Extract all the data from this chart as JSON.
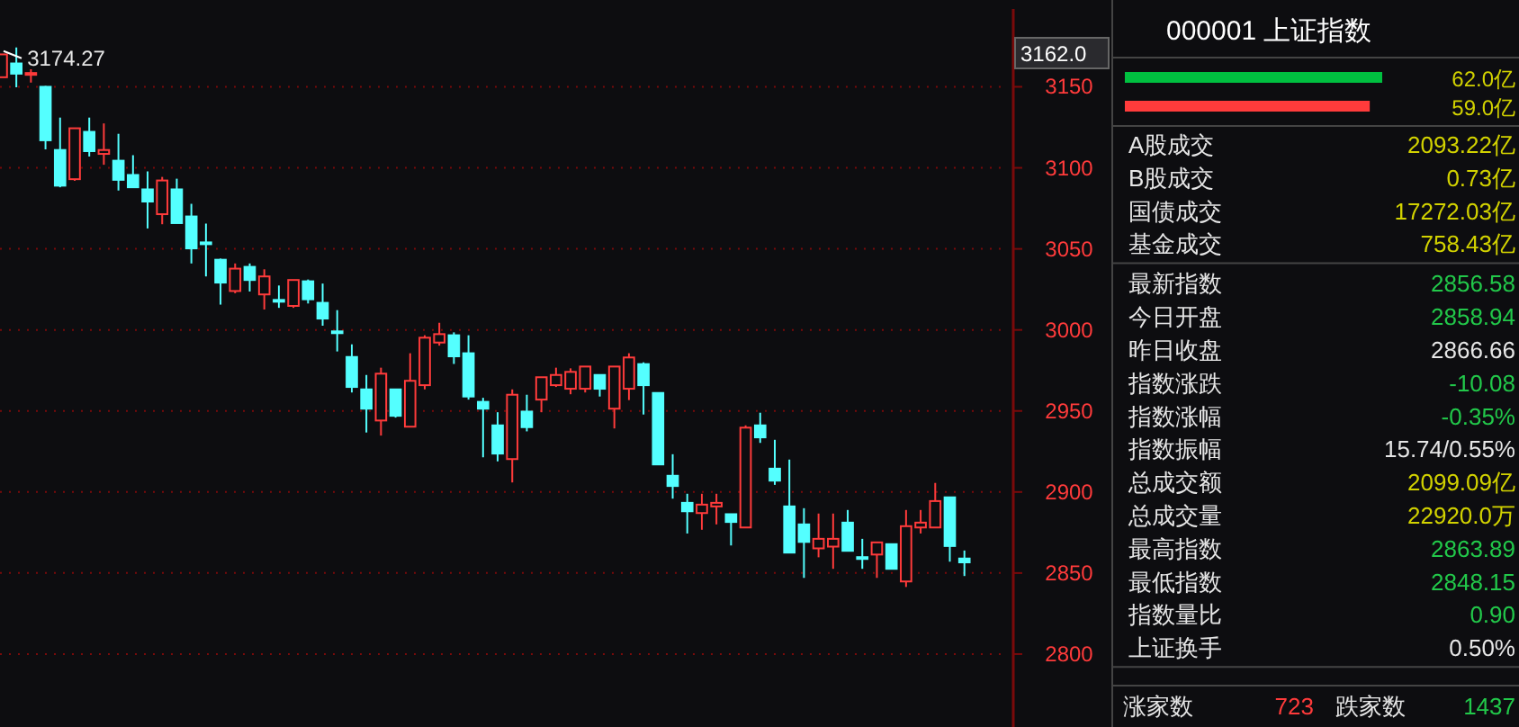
{
  "chart_data": [
    {
      "type": "candlestick",
      "categories": [
        null,
        null,
        null,
        null,
        null,
        null,
        null,
        null,
        null,
        null,
        null,
        null,
        null,
        null,
        null,
        null,
        null,
        null,
        null,
        null,
        null,
        null,
        null,
        null,
        null,
        null,
        null,
        null,
        null,
        null,
        null,
        null,
        null,
        null,
        null,
        null,
        null,
        null,
        null,
        null,
        null,
        null,
        null,
        null,
        null,
        null,
        null,
        null,
        null,
        null,
        null,
        null,
        null,
        null,
        null,
        null,
        null,
        null,
        null,
        null,
        null,
        null,
        null,
        null,
        null,
        null,
        null
      ],
      "ohlc": [
        [
          3155.9,
          3170,
          3155.9,
          3170
        ],
        [
          3164.4,
          3174.27,
          3149.7,
          3158.1
        ],
        [
          3157.5,
          3160.8,
          3152.6,
          3158.5
        ],
        [
          3150,
          3150.5,
          3111.4,
          3117
        ],
        [
          3111,
          3131,
          3088,
          3089
        ],
        [
          3093,
          3124.4,
          3092,
          3124.4
        ],
        [
          3122.2,
          3131,
          3107,
          3110.3
        ],
        [
          3108.6,
          3127.4,
          3101.9,
          3111
        ],
        [
          3104.4,
          3121,
          3086,
          3092.6
        ],
        [
          3095.6,
          3107.8,
          3087.8,
          3088
        ],
        [
          3086.7,
          3097.8,
          3062.6,
          3079.2
        ],
        [
          3071.4,
          3094.4,
          3065.2,
          3092.2
        ],
        [
          3086.7,
          3093.3,
          3065.9,
          3065.9
        ],
        [
          3070,
          3077.8,
          3041,
          3050.3
        ],
        [
          3054,
          3065.6,
          3033,
          3053.3
        ],
        [
          3043.3,
          3044,
          3015.6,
          3029.2
        ],
        [
          3024,
          3041,
          3022.6,
          3037.8
        ],
        [
          3038.9,
          3041,
          3023.7,
          3030.8
        ],
        [
          3021.9,
          3037.4,
          3012.6,
          3033
        ],
        [
          3018.5,
          3027.4,
          3013.6,
          3018
        ],
        [
          3014.8,
          3030.8,
          3013.6,
          3030.8
        ],
        [
          3030,
          3031.1,
          3016.3,
          3018.9
        ],
        [
          3016.7,
          3028.6,
          3002.6,
          3007
        ],
        [
          2999.1,
          3012.2,
          2986.7,
          2998.9
        ],
        [
          2983.3,
          2991.1,
          2961.4,
          2964.8
        ],
        [
          2963.3,
          2972.2,
          2936.7,
          2951.4
        ],
        [
          2944.1,
          2976.7,
          2934.8,
          2973
        ],
        [
          2963.3,
          2963.3,
          2945.9,
          2947
        ],
        [
          2940.3,
          2985.6,
          2940.3,
          2968.6
        ],
        [
          2965.9,
          2996.7,
          2963.3,
          2995.2
        ],
        [
          2992.2,
          3004.4,
          2990.3,
          2997.4
        ],
        [
          2996.7,
          2998.5,
          2979,
          2983.7
        ],
        [
          2985.6,
          2996.7,
          2957,
          2958.9
        ],
        [
          2955.6,
          2958.1,
          2921.4,
          2951.4
        ],
        [
          2941.1,
          2949.2,
          2918.9,
          2923.7
        ],
        [
          2920.3,
          2963.3,
          2905.9,
          2960
        ],
        [
          2949.6,
          2960,
          2937.4,
          2940
        ],
        [
          2957,
          2970.8,
          2949.2,
          2970.8
        ],
        [
          2965.9,
          2976.7,
          2964.8,
          2972.2
        ],
        [
          2963.7,
          2976.3,
          2960.3,
          2974.1
        ],
        [
          2963.7,
          2977.4,
          2961.4,
          2977.4
        ],
        [
          2972.2,
          2972.2,
          2958.9,
          2963.7
        ],
        [
          2951.4,
          2977.4,
          2939.2,
          2977.4
        ],
        [
          2963.7,
          2985.6,
          2956.7,
          2983
        ],
        [
          2978.9,
          2980,
          2947.8,
          2965.9
        ],
        [
          2961.1,
          2961.1,
          2917,
          2917
        ],
        [
          2910,
          2923.3,
          2895.9,
          2903.7
        ],
        [
          2893.3,
          2898.9,
          2874.4,
          2888.1
        ],
        [
          2887,
          2898.9,
          2876.7,
          2892.2
        ],
        [
          2891.1,
          2898.9,
          2880,
          2893.3
        ],
        [
          2886.3,
          2886.3,
          2867,
          2881.5
        ],
        [
          2878.1,
          2941.1,
          2878.1,
          2939.7
        ],
        [
          2941.1,
          2948.9,
          2930.3,
          2933.7
        ],
        [
          2914.4,
          2932.2,
          2904.4,
          2907
        ],
        [
          2891.1,
          2920,
          2862.6,
          2862.6
        ],
        [
          2880,
          2890,
          2847,
          2869.2
        ],
        [
          2865.2,
          2886.7,
          2859.7,
          2871.1
        ],
        [
          2866.3,
          2886.7,
          2852.6,
          2871.1
        ],
        [
          2881.1,
          2888.9,
          2863.7,
          2863.7
        ],
        [
          2859.8,
          2871.1,
          2852.6,
          2859.6
        ],
        [
          2861.4,
          2868.9,
          2847,
          2868.9
        ],
        [
          2867.8,
          2867.8,
          2852.6,
          2852.6
        ],
        [
          2844.8,
          2888.9,
          2841.4,
          2878.9
        ],
        [
          2878.1,
          2888.9,
          2874.4,
          2881.1
        ],
        [
          2878.1,
          2905.6,
          2878.1,
          2894.4
        ],
        [
          2896.7,
          2897,
          2857,
          2866.66
        ],
        [
          2858.94,
          2863.89,
          2848.15,
          2856.58
        ]
      ],
      "colors": [
        "#ff3b3b",
        "#54ffff",
        "#ff3b3b",
        "#54ffff",
        "#54ffff",
        "#ff3b3b",
        "#54ffff",
        "#ff3b3b",
        "#54ffff",
        "#54ffff",
        "#54ffff",
        "#ff3b3b",
        "#54ffff",
        "#54ffff",
        "#54ffff",
        "#54ffff",
        "#ff3b3b",
        "#54ffff",
        "#ff3b3b",
        "#54ffff",
        "#ff3b3b",
        "#54ffff",
        "#54ffff",
        "#54ffff",
        "#54ffff",
        "#54ffff",
        "#ff3b3b",
        "#54ffff",
        "#ff3b3b",
        "#ff3b3b",
        "#ff3b3b",
        "#54ffff",
        "#54ffff",
        "#54ffff",
        "#54ffff",
        "#ff3b3b",
        "#54ffff",
        "#ff3b3b",
        "#ff3b3b",
        "#ff3b3b",
        "#ff3b3b",
        "#54ffff",
        "#ff3b3b",
        "#ff3b3b",
        "#54ffff",
        "#54ffff",
        "#54ffff",
        "#54ffff",
        "#ff3b3b",
        "#ff3b3b",
        "#54ffff",
        "#ff3b3b",
        "#54ffff",
        "#54ffff",
        "#54ffff",
        "#54ffff",
        "#ff3b3b",
        "#ff3b3b",
        "#54ffff",
        "#54ffff",
        "#ff3b3b",
        "#54ffff",
        "#ff3b3b",
        "#ff3b3b",
        "#ff3b3b",
        "#54ffff",
        "#54ffff"
      ],
      "ylim": [
        2755,
        3198
      ],
      "yticks": [
        2800,
        2850,
        2900,
        2950,
        3000,
        3050,
        3100,
        3150
      ],
      "grid": "y",
      "annotations": [
        "3174.27",
        "3162.0"
      ]
    },
    {
      "type": "bar",
      "orientation": "horizontal",
      "title": "000001 上证指数",
      "categories": [
        null,
        null
      ],
      "values": [
        62.0,
        59.0
      ],
      "colors": [
        "#00c040",
        "#ff3b3b"
      ],
      "value_labels": [
        "62.0亿",
        "59.0亿"
      ]
    },
    {
      "type": "other",
      "annotations": [
        "A股成交",
        "2093.22亿",
        "B股成交",
        "0.73亿",
        "国债成交",
        "17272.03亿",
        "基金成交",
        "758.43亿"
      ],
      "colors": [
        "#e6e6e6",
        "#d2d200",
        "#e6e6e6",
        "#d2d200",
        "#e6e6e6",
        "#d2d200",
        "#e6e6e6",
        "#d2d200"
      ]
    },
    {
      "type": "other",
      "annotations": [
        "最新指数",
        "2856.58",
        "今日开盘",
        "2858.94",
        "昨日收盘",
        "2866.66",
        "指数涨跌",
        "-10.08",
        "指数涨幅",
        "-0.35%",
        "指数振幅",
        "15.74/0.55%",
        "总成交额",
        "2099.09亿",
        "总成交量",
        "22920.0万",
        "最高指数",
        "2863.89",
        "最低指数",
        "2848.15",
        "指数量比",
        "0.90",
        "上证换手",
        "0.50%"
      ],
      "colors": [
        "#e6e6e6",
        "#22c84a",
        "#e6e6e6",
        "#22c84a",
        "#e6e6e6",
        "#e6e6e6",
        "#e6e6e6",
        "#22c84a",
        "#e6e6e6",
        "#22c84a",
        "#e6e6e6",
        "#e6e6e6",
        "#e6e6e6",
        "#d2d200",
        "#e6e6e6",
        "#d2d200",
        "#e6e6e6",
        "#22c84a",
        "#e6e6e6",
        "#22c84a",
        "#e6e6e6",
        "#22c84a",
        "#e6e6e6",
        "#e6e6e6"
      ]
    },
    {
      "type": "other",
      "annotations": [
        "涨家数",
        "723",
        "跌家数",
        "1437"
      ],
      "colors": [
        "#e6e6e6",
        "#ff3b3b",
        "#e6e6e6",
        "#22c84a"
      ]
    }
  ]
}
